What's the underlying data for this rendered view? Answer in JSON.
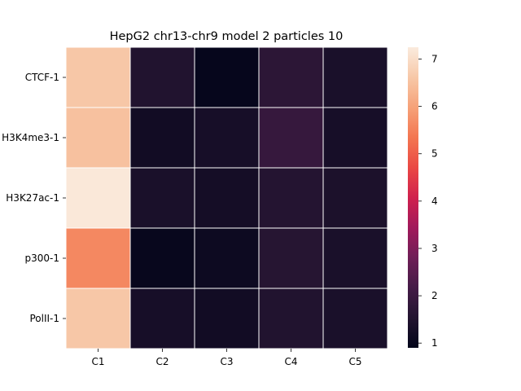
{
  "chart_data": {
    "type": "heatmap",
    "title": "HepG2 chr13-chr9 model 2 particles 10",
    "xlabel": "",
    "ylabel": "",
    "x_categories": [
      "C1",
      "C2",
      "C3",
      "C4",
      "C5"
    ],
    "y_categories": [
      "CTCF-1",
      "H3K4me3-1",
      "H3K27ac-1",
      "p300-1",
      "PolII-1"
    ],
    "values": [
      [
        6.6,
        1.5,
        0.95,
        1.7,
        1.35
      ],
      [
        6.5,
        1.2,
        1.3,
        1.9,
        1.3
      ],
      [
        7.2,
        1.35,
        1.25,
        1.55,
        1.4
      ],
      [
        5.6,
        1.0,
        1.1,
        1.6,
        1.35
      ],
      [
        6.6,
        1.3,
        1.2,
        1.5,
        1.35
      ]
    ],
    "colorbar": {
      "min": 0.9,
      "max": 7.25,
      "ticks": [
        1,
        2,
        3,
        4,
        5,
        6,
        7
      ],
      "colormap": "rocket"
    },
    "grid_lines_color": "#ffffff"
  }
}
